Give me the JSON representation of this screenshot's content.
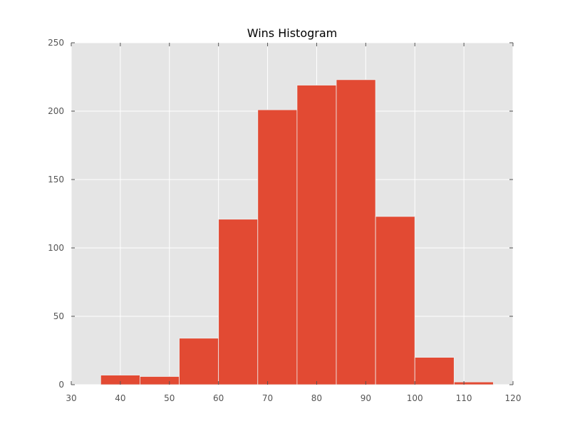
{
  "chart_data": {
    "type": "bar",
    "title": "Wins Histogram",
    "xlabel": "",
    "ylabel": "",
    "xlim": [
      30,
      120
    ],
    "ylim": [
      0,
      250
    ],
    "xticks": [
      30,
      40,
      50,
      60,
      70,
      80,
      90,
      100,
      110,
      120
    ],
    "yticks": [
      0,
      50,
      100,
      150,
      200,
      250
    ],
    "grid": true,
    "bins": [
      {
        "start": 36.0,
        "end": 44.0,
        "count": 7
      },
      {
        "start": 44.0,
        "end": 52.0,
        "count": 6
      },
      {
        "start": 52.0,
        "end": 60.0,
        "count": 34
      },
      {
        "start": 60.0,
        "end": 68.0,
        "count": 121
      },
      {
        "start": 68.0,
        "end": 76.0,
        "count": 201
      },
      {
        "start": 76.0,
        "end": 84.0,
        "count": 219
      },
      {
        "start": 84.0,
        "end": 92.0,
        "count": 223
      },
      {
        "start": 92.0,
        "end": 100.0,
        "count": 123
      },
      {
        "start": 100.0,
        "end": 108.0,
        "count": 20
      },
      {
        "start": 108.0,
        "end": 116.0,
        "count": 2
      }
    ],
    "colors": {
      "bar": "#E24A33",
      "bar_edge": "#EEEEEE",
      "plot_background": "#E5E5E5",
      "grid": "#FFFFFF",
      "axis": "#555555",
      "tick_label": "#555555",
      "title": "#000000"
    }
  }
}
